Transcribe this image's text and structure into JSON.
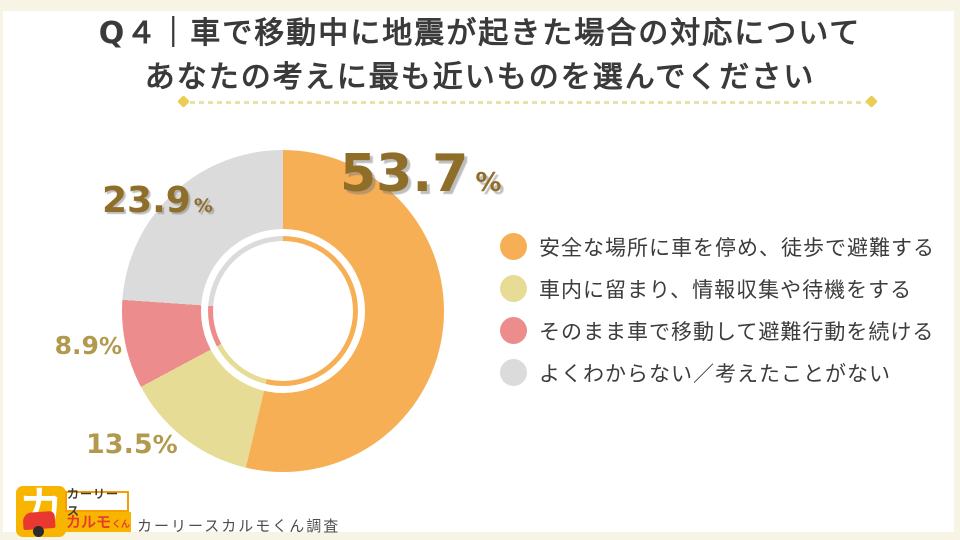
{
  "title": {
    "line1": "Q４｜車で移動中に地震が起きた場合の対応について",
    "line2": "あなたの考えに最も近いものを選んでください"
  },
  "chart_data": {
    "type": "pie",
    "donut": true,
    "title": "Q４｜車で移動中に地震が起きた場合の対応について あなたの考えに最も近いものを選んでください",
    "unit": "%",
    "start_angle": "12-oclock",
    "direction": "clockwise",
    "legend_position": "right",
    "segments": [
      {
        "label": "安全な場所に車を停め、徒歩で避難する",
        "value": 53.7,
        "display": "53.7",
        "color": "#F7AF55"
      },
      {
        "label": "車内に留まり、情報収集や待機をする",
        "value": 13.5,
        "display": "13.5",
        "color": "#E7DC95"
      },
      {
        "label": "そのまま車で移動して避難行動を続ける",
        "value": 8.9,
        "display": "8.9",
        "color": "#EC8C8C"
      },
      {
        "label": "よくわからない／考えたことがない",
        "value": 23.9,
        "display": "23.9",
        "color": "#DBDBDB"
      }
    ]
  },
  "footer": {
    "logo": {
      "icon_glyph": "カ",
      "box1": "カーリース",
      "box2_main": "カルモ",
      "box2_suffix": "くん"
    },
    "caption": "カーリースカルモくん調査"
  },
  "colors": {
    "accent_gold_dark": "#8F6E2A",
    "accent_gold_light": "#B3994D",
    "divider": "#E7E3A5",
    "ornament": "#EACD55",
    "border_cream": "#F7F4E6",
    "logo_yellow": "#F7B500",
    "logo_red": "#E8382F",
    "title_text": "#3A3A3A"
  }
}
